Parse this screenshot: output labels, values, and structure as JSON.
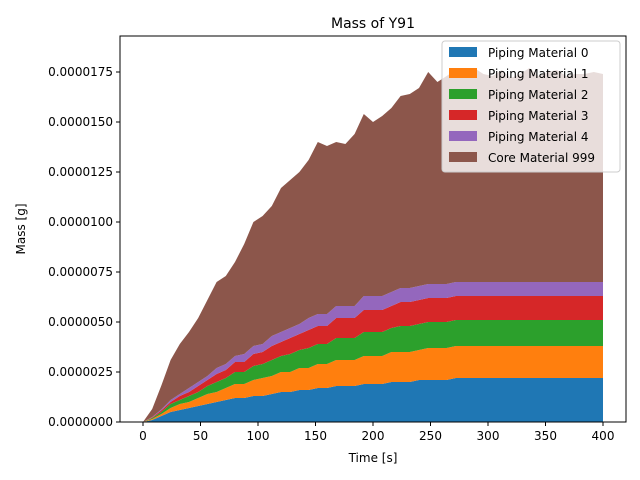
{
  "chart_data": {
    "type": "area",
    "stacked": true,
    "title": "Mass of Y91",
    "xlabel": "Time [s]",
    "ylabel": "Mass [g]",
    "xlim": [
      -20,
      420
    ],
    "ylim": [
      0,
      1.93e-05
    ],
    "xticks": [
      0,
      50,
      100,
      150,
      200,
      250,
      300,
      350,
      400
    ],
    "xtick_labels": [
      "0",
      "50",
      "100",
      "150",
      "200",
      "250",
      "300",
      "350",
      "400"
    ],
    "yticks": [
      0,
      2.5e-06,
      5e-06,
      7.5e-06,
      1e-05,
      1.25e-05,
      1.5e-05,
      1.75e-05
    ],
    "ytick_labels": [
      "0.0000000",
      "0.0000025",
      "0.0000050",
      "0.0000075",
      "0.0000100",
      "0.0000125",
      "0.0000150",
      "0.0000175"
    ],
    "legend_position": "top-right",
    "x": [
      0,
      8,
      16,
      24,
      32,
      40,
      48,
      56,
      64,
      72,
      80,
      88,
      96,
      104,
      112,
      120,
      128,
      136,
      144,
      152,
      160,
      168,
      176,
      184,
      192,
      200,
      208,
      216,
      224,
      232,
      240,
      248,
      256,
      264,
      272,
      280,
      288,
      296,
      304,
      312,
      320,
      328,
      336,
      344,
      352,
      360,
      368,
      376,
      384,
      392,
      400
    ],
    "series": [
      {
        "name": "Piping Material 0",
        "color": "#1f77b4",
        "values": [
          0,
          1e-07,
          3e-07,
          5e-07,
          6e-07,
          7e-07,
          8e-07,
          9e-07,
          1e-06,
          1.1e-06,
          1.2e-06,
          1.2e-06,
          1.3e-06,
          1.3e-06,
          1.4e-06,
          1.5e-06,
          1.5e-06,
          1.6e-06,
          1.6e-06,
          1.7e-06,
          1.7e-06,
          1.8e-06,
          1.8e-06,
          1.8e-06,
          1.9e-06,
          1.9e-06,
          1.9e-06,
          2e-06,
          2e-06,
          2e-06,
          2.1e-06,
          2.1e-06,
          2.1e-06,
          2.1e-06,
          2.2e-06,
          2.2e-06,
          2.2e-06,
          2.2e-06,
          2.2e-06,
          2.2e-06,
          2.2e-06,
          2.2e-06,
          2.2e-06,
          2.2e-06,
          2.2e-06,
          2.2e-06,
          2.2e-06,
          2.2e-06,
          2.2e-06,
          2.2e-06,
          2.2e-06
        ]
      },
      {
        "name": "Piping Material 1",
        "color": "#ff7f0e",
        "values": [
          0,
          5e-08,
          1e-07,
          2e-07,
          3e-07,
          3e-07,
          4e-07,
          5e-07,
          5e-07,
          6e-07,
          7e-07,
          7e-07,
          8e-07,
          9e-07,
          9e-07,
          1e-06,
          1e-06,
          1.1e-06,
          1.1e-06,
          1.2e-06,
          1.2e-06,
          1.3e-06,
          1.3e-06,
          1.3e-06,
          1.4e-06,
          1.4e-06,
          1.4e-06,
          1.5e-06,
          1.5e-06,
          1.5e-06,
          1.5e-06,
          1.6e-06,
          1.6e-06,
          1.6e-06,
          1.6e-06,
          1.6e-06,
          1.6e-06,
          1.6e-06,
          1.6e-06,
          1.6e-06,
          1.6e-06,
          1.6e-06,
          1.6e-06,
          1.6e-06,
          1.6e-06,
          1.6e-06,
          1.6e-06,
          1.6e-06,
          1.6e-06,
          1.6e-06,
          1.6e-06
        ]
      },
      {
        "name": "Piping Material 2",
        "color": "#2ca02c",
        "values": [
          0,
          5e-08,
          1e-07,
          2e-07,
          2e-07,
          3e-07,
          3e-07,
          4e-07,
          5e-07,
          5e-07,
          6e-07,
          6e-07,
          7e-07,
          7e-07,
          8e-07,
          8e-07,
          9e-07,
          9e-07,
          1e-06,
          1e-06,
          1e-06,
          1.1e-06,
          1.1e-06,
          1.1e-06,
          1.2e-06,
          1.2e-06,
          1.2e-06,
          1.2e-06,
          1.3e-06,
          1.3e-06,
          1.3e-06,
          1.3e-06,
          1.3e-06,
          1.3e-06,
          1.3e-06,
          1.3e-06,
          1.3e-06,
          1.3e-06,
          1.3e-06,
          1.3e-06,
          1.3e-06,
          1.3e-06,
          1.3e-06,
          1.3e-06,
          1.3e-06,
          1.3e-06,
          1.3e-06,
          1.3e-06,
          1.3e-06,
          1.3e-06,
          1.3e-06
        ]
      },
      {
        "name": "Piping Material 3",
        "color": "#d62728",
        "values": [
          0,
          3e-08,
          8e-08,
          1e-07,
          2e-07,
          2e-07,
          3e-07,
          3e-07,
          4e-07,
          4e-07,
          5e-07,
          5e-07,
          6e-07,
          6e-07,
          7e-07,
          7e-07,
          8e-07,
          8e-07,
          9e-07,
          9e-07,
          9e-07,
          1e-06,
          1e-06,
          1e-06,
          1.1e-06,
          1.1e-06,
          1.1e-06,
          1.1e-06,
          1.2e-06,
          1.2e-06,
          1.2e-06,
          1.2e-06,
          1.2e-06,
          1.2e-06,
          1.2e-06,
          1.2e-06,
          1.2e-06,
          1.2e-06,
          1.2e-06,
          1.2e-06,
          1.2e-06,
          1.2e-06,
          1.2e-06,
          1.2e-06,
          1.2e-06,
          1.2e-06,
          1.2e-06,
          1.2e-06,
          1.2e-06,
          1.2e-06,
          1.2e-06
        ]
      },
      {
        "name": "Piping Material 4",
        "color": "#9467bd",
        "values": [
          0,
          2e-08,
          5e-08,
          1e-07,
          1e-07,
          2e-07,
          2e-07,
          2e-07,
          3e-07,
          3e-07,
          3e-07,
          4e-07,
          4e-07,
          4e-07,
          5e-07,
          5e-07,
          5e-07,
          5e-07,
          6e-07,
          6e-07,
          6e-07,
          6e-07,
          6e-07,
          6e-07,
          7e-07,
          7e-07,
          7e-07,
          7e-07,
          7e-07,
          7e-07,
          7e-07,
          7e-07,
          7e-07,
          7e-07,
          7e-07,
          7e-07,
          7e-07,
          7e-07,
          7e-07,
          7e-07,
          7e-07,
          7e-07,
          7e-07,
          7e-07,
          7e-07,
          7e-07,
          7e-07,
          7e-07,
          7e-07,
          7e-07,
          7e-07
        ]
      },
      {
        "name": "Core Material 999",
        "color": "#8c564b",
        "values": [
          0,
          4e-07,
          1.2e-06,
          2e-06,
          2.5e-06,
          2.8e-06,
          3.2e-06,
          3.8e-06,
          4.3e-06,
          4.4e-06,
          4.7e-06,
          5.5e-06,
          6.2e-06,
          6.4e-06,
          6.5e-06,
          7.2e-06,
          7.4e-06,
          7.6e-06,
          7.9e-06,
          8.6e-06,
          8.4e-06,
          8.2e-06,
          8.1e-06,
          8.6e-06,
          9.1e-06,
          8.7e-06,
          9e-06,
          9.2e-06,
          9.6e-06,
          9.7e-06,
          9.9e-06,
          1.06e-05,
          1.01e-05,
          1.04e-05,
          1.06e-05,
          1.03e-05,
          1.07e-05,
          1.04e-05,
          1.03e-05,
          1.06e-05,
          1.02e-05,
          1.04e-05,
          1.07e-05,
          1.03e-05,
          1.05e-05,
          1.06e-05,
          1.03e-05,
          1.04e-05,
          1.04e-05,
          1.05e-05,
          1.04e-05
        ]
      }
    ]
  }
}
